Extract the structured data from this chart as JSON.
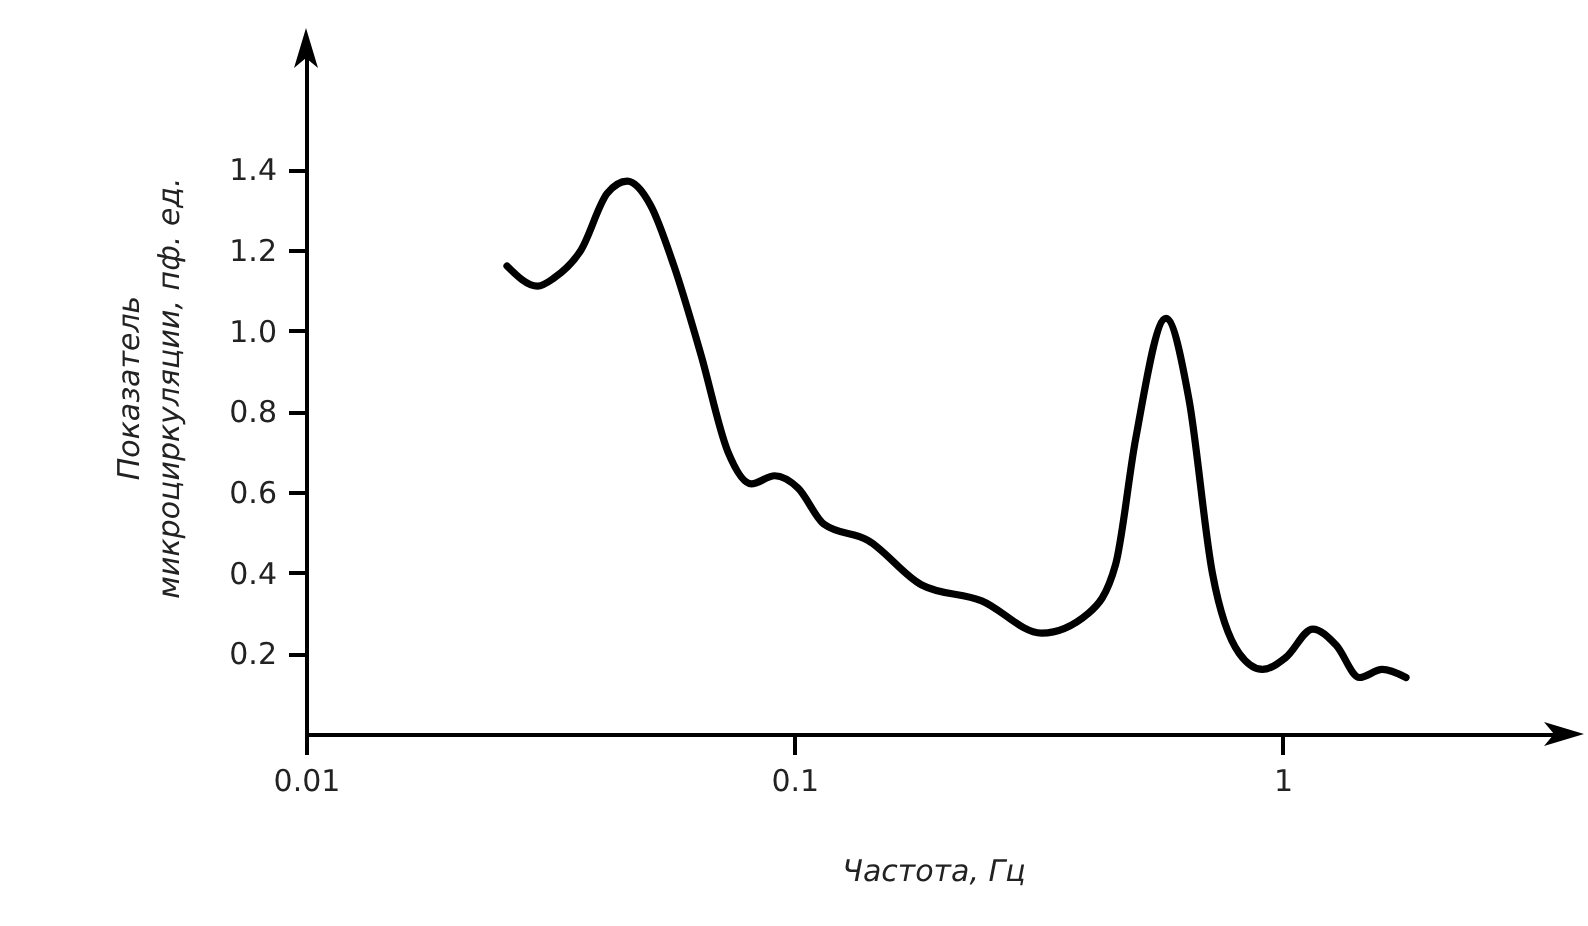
{
  "chart_data": {
    "type": "line",
    "xlabel": "Частота, Гц",
    "ylabel": "Показатель микроциркуляции, пф. ед.",
    "log": "x",
    "xlim": [
      0.01,
      3.7
    ],
    "xticks": [
      0.01,
      0.1,
      1
    ],
    "ylim": [
      0,
      1.72
    ],
    "yticks": [
      0.2,
      0.4,
      0.6,
      0.8,
      {
        "value": 1,
        "label": "1.0"
      },
      1.2,
      1.4
    ],
    "grid": false,
    "line_style": "solid",
    "marker": "none",
    "series": [
      {
        "color": "#000000",
        "x": [
          0.0258,
          0.0298,
          0.0322,
          0.0366,
          0.0414,
          0.0455,
          0.0508,
          0.0567,
          0.0644,
          0.0731,
          0.0817,
          0.0912,
          0.1017,
          0.115,
          0.1415,
          0.182,
          0.242,
          0.321,
          0.401,
          0.455,
          0.5,
          0.577,
          0.643,
          0.718,
          0.815,
          0.91,
          1.016,
          1.153,
          1.288,
          1.437,
          1.6,
          1.79
        ],
        "values": [
          1.16,
          1.11,
          1.13,
          1.2,
          1.34,
          1.37,
          1.31,
          1.16,
          0.94,
          0.7,
          0.62,
          0.64,
          0.61,
          0.52,
          0.48,
          0.37,
          0.33,
          0.25,
          0.3,
          0.42,
          0.73,
          1.03,
          0.83,
          0.4,
          0.2,
          0.16,
          0.19,
          0.26,
          0.22,
          0.14,
          0.16,
          0.14
        ]
      }
    ]
  }
}
